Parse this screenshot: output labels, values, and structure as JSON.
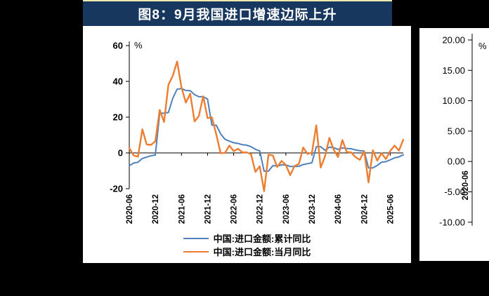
{
  "page": {
    "background": "#000000"
  },
  "left_figure": {
    "title": "图8：9月我国进口增速边际上升",
    "header_bg": "#17375E",
    "header_top_line": "#EFE9AE",
    "header_text_color": "#FFFFFF",
    "legend": [
      {
        "key": "cumulative",
        "label": "中国:进口金额:累计同比",
        "color": "#4F81BD"
      },
      {
        "key": "monthly",
        "label": "中国:进口金额:当月同比",
        "color": "#ED7D31"
      }
    ]
  },
  "right_figure": {
    "note_visible_part": "only y-axis, % unit and first rotated x label of the adjacent cropped figure are visible"
  },
  "chart_data": [
    {
      "type": "line",
      "title": "图8：9月我国进口增速边际上升",
      "ylabel": "%",
      "ylim": [
        -20,
        60
      ],
      "yticks": [
        60,
        40,
        20,
        0,
        -20
      ],
      "grid": false,
      "legend_position": "bottom",
      "x": [
        "2020-06",
        "2020-07",
        "2020-08",
        "2020-09",
        "2020-10",
        "2020-11",
        "2020-12",
        "2021-01",
        "2021-02",
        "2021-03",
        "2021-04",
        "2021-05",
        "2021-06",
        "2021-07",
        "2021-08",
        "2021-09",
        "2021-10",
        "2021-11",
        "2021-12",
        "2022-01",
        "2022-02",
        "2022-03",
        "2022-04",
        "2022-05",
        "2022-06",
        "2022-07",
        "2022-08",
        "2022-09",
        "2022-10",
        "2022-11",
        "2022-12",
        "2023-01",
        "2023-02",
        "2023-03",
        "2023-04",
        "2023-05",
        "2023-06",
        "2023-07",
        "2023-08",
        "2023-09",
        "2023-10",
        "2023-11",
        "2023-12",
        "2024-01",
        "2024-02",
        "2024-03",
        "2024-04",
        "2024-05",
        "2024-06",
        "2024-07",
        "2024-08",
        "2024-09",
        "2024-10",
        "2024-11",
        "2024-12",
        "2025-01",
        "2025-02",
        "2025-03",
        "2025-04",
        "2025-05",
        "2025-06",
        "2025-07",
        "2025-08",
        "2025-09"
      ],
      "xtick_labels": [
        "2020-06",
        "2020-12",
        "2021-06",
        "2021-12",
        "2022-06",
        "2022-12",
        "2023-06",
        "2023-12",
        "2024-06",
        "2024-12",
        "2025-06"
      ],
      "series": [
        {
          "key": "cumulative",
          "name": "中国:进口金额:累计同比",
          "color": "#4F81BD",
          "width": 2,
          "values": [
            -7.1,
            -5.7,
            -5.2,
            -3.1,
            -2.3,
            -1.6,
            -1.1,
            22.2,
            22.2,
            22.6,
            30.6,
            35.6,
            36.0,
            34.9,
            34.8,
            32.6,
            31.4,
            31.4,
            30.1,
            15.5,
            15.5,
            10.7,
            7.6,
            6.6,
            5.7,
            5.3,
            4.6,
            4.3,
            3.5,
            2.0,
            1.1,
            -10.2,
            -10.2,
            -7.1,
            -7.3,
            -6.7,
            -6.7,
            -7.6,
            -7.6,
            -7.5,
            -6.5,
            -6.0,
            -5.5,
            3.5,
            3.5,
            1.5,
            3.2,
            2.9,
            2.0,
            2.8,
            2.5,
            2.3,
            1.7,
            1.2,
            1.1,
            -8.4,
            -8.4,
            -7.0,
            -5.2,
            -4.9,
            -3.9,
            -2.8,
            -2.2,
            -1.1
          ]
        },
        {
          "key": "monthly",
          "name": "中国:进口金额:当月同比",
          "color": "#ED7D31",
          "width": 2.4,
          "values": [
            2.7,
            -1.4,
            -2.1,
            13.2,
            4.7,
            4.5,
            6.5,
            24.0,
            17.3,
            38.1,
            43.1,
            51.1,
            36.7,
            28.1,
            33.1,
            17.6,
            20.6,
            31.7,
            19.5,
            19.9,
            10.4,
            -0.1,
            0.0,
            4.1,
            1.0,
            2.3,
            0.3,
            0.3,
            -0.7,
            -10.6,
            -7.5,
            -21.4,
            -1.0,
            -1.4,
            -7.9,
            -4.5,
            -6.8,
            -12.4,
            -7.3,
            -6.2,
            3.0,
            -0.6,
            0.2,
            15.4,
            -8.2,
            -1.9,
            8.4,
            1.8,
            -2.3,
            7.2,
            0.5,
            0.3,
            -2.3,
            -3.9,
            1.0,
            -16.5,
            1.5,
            -4.3,
            -0.2,
            -3.4,
            1.1,
            4.1,
            1.3,
            7.4
          ]
        }
      ]
    },
    {
      "type": "line",
      "note": "partially visible (cropped) right-hand figure: only axis area shown",
      "ylabel": "%",
      "ylim": [
        -10,
        20
      ],
      "yticks": [
        "20.00",
        "15.00",
        "10.00",
        "5.00",
        "0.00",
        "-5.00",
        "-10.00"
      ],
      "x_first_label": "2020-06",
      "series": []
    }
  ]
}
